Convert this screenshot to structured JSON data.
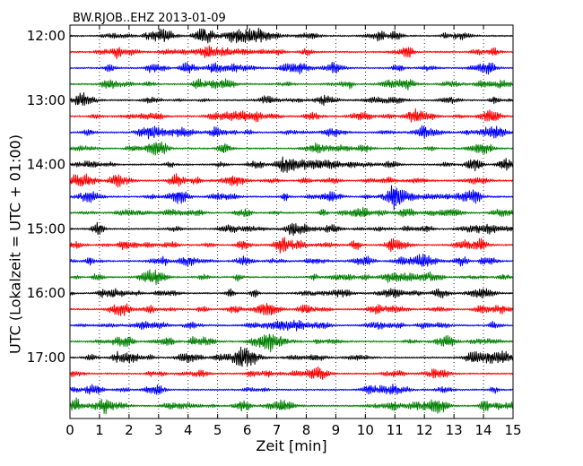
{
  "chart_data": {
    "type": "line",
    "title": "BW.RJOB..EHZ 2013-01-09",
    "xlabel": "Zeit  [min]",
    "ylabel": "UTC (Lokalzeit = UTC + 01:00)",
    "xlim": [
      0,
      15
    ],
    "x_ticks": [
      "0",
      "1",
      "2",
      "3",
      "4",
      "5",
      "6",
      "7",
      "8",
      "9",
      "10",
      "11",
      "12",
      "13",
      "14",
      "15"
    ],
    "y_tick_labels": [
      "12:00",
      "13:00",
      "14:00",
      "15:00",
      "16:00",
      "17:00"
    ],
    "trace_start_times": [
      "12:00",
      "12:15",
      "12:30",
      "12:45",
      "13:00",
      "13:15",
      "13:30",
      "13:45",
      "14:00",
      "14:15",
      "14:30",
      "14:45",
      "15:00",
      "15:15",
      "15:30",
      "15:45",
      "16:00",
      "16:15",
      "16:30",
      "16:45",
      "17:00",
      "17:15",
      "17:30",
      "17:45"
    ],
    "trace_colors": [
      "#000000",
      "#ff0000",
      "#0000ff",
      "#008000"
    ],
    "vertical_grid": "dotted",
    "legend": "none"
  }
}
